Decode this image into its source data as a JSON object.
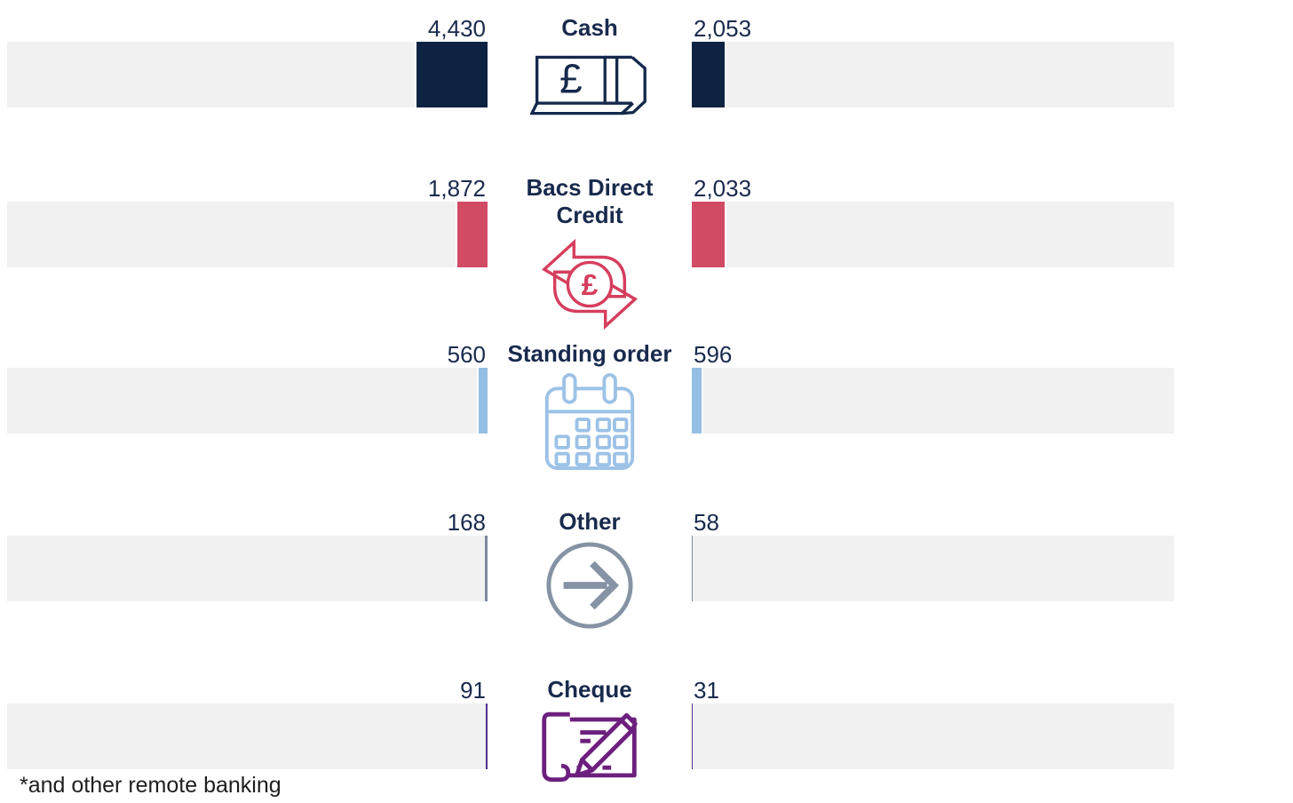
{
  "chart_data": {
    "type": "bar",
    "orientation": "horizontal",
    "variant": "diverging-two-sided-pictogram",
    "categories": [
      "Cash",
      "Bacs Direct Credit",
      "Standing order",
      "Other",
      "Cheque"
    ],
    "series": [
      {
        "name": "left",
        "values": [
          4430,
          1872,
          560,
          168,
          91
        ]
      },
      {
        "name": "right",
        "values": [
          2053,
          2033,
          596,
          58,
          31
        ]
      }
    ],
    "data_labels": {
      "left": [
        "4,430",
        "1,872",
        "560",
        "168",
        "91"
      ],
      "right": [
        "2,053",
        "2,033",
        "596",
        "58",
        "31"
      ]
    },
    "axis_max": 4430,
    "grid": false,
    "legend": false,
    "track_color": "#F1F1F1",
    "row_colors": [
      "#0E2342",
      "#D24B65",
      "#95BEE4",
      "#7C8A9D",
      "#503090"
    ],
    "footnote": "*and other remote banking"
  },
  "rows": [
    {
      "title": "Cash",
      "icon": "banknote-icon",
      "left_label": "4,430",
      "left_value": 4430,
      "right_label": "2,053",
      "right_value": 2053,
      "bar_color": "#0E2342",
      "icon_color": "#15294C",
      "icon_glyph": "£"
    },
    {
      "title": "Bacs Direct Credit",
      "icon": "currency-transfer-icon",
      "left_label": "1,872",
      "left_value": 1872,
      "right_label": "2,033",
      "right_value": 2033,
      "bar_color": "#D24B65",
      "icon_color": "#D63E5E",
      "icon_glyph": "£"
    },
    {
      "title": "Standing order",
      "icon": "calendar-icon",
      "left_label": "560",
      "left_value": 560,
      "right_label": "596",
      "right_value": 596,
      "bar_color": "#95BEE4",
      "icon_color": "#9CC2E6",
      "icon_glyph": ""
    },
    {
      "title": "Other",
      "icon": "arrow-right-circle-icon",
      "left_label": "168",
      "left_value": 168,
      "right_label": "58",
      "right_value": 58,
      "bar_color": "#7C8A9D",
      "icon_color": "#8593A4",
      "icon_glyph": ""
    },
    {
      "title": "Cheque",
      "icon": "cheque-pen-icon",
      "left_label": "91",
      "left_value": 91,
      "right_label": "31",
      "right_value": 31,
      "bar_color": "#503090",
      "icon_color": "#6C1F7D",
      "icon_glyph": ""
    }
  ],
  "footnote": "*and other remote banking"
}
